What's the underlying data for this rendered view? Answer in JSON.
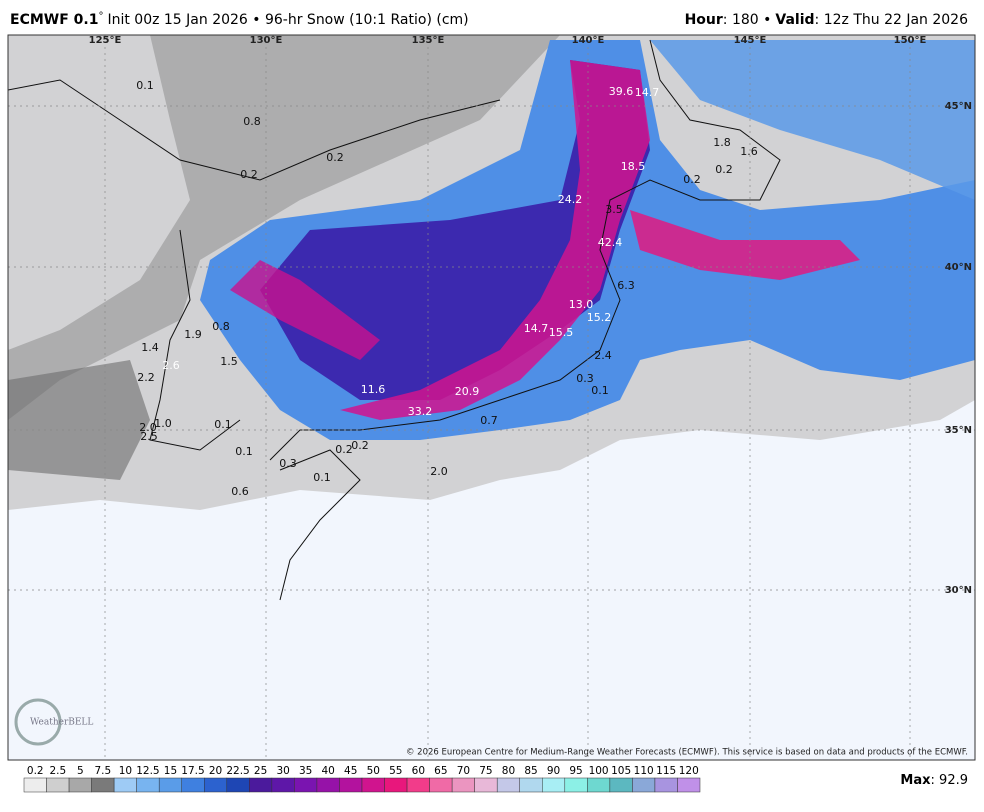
{
  "header": {
    "model": "ECMWF 0.1",
    "degree": "°",
    "description": "Init 00z 15 Jan 2026 • 96-hr Snow (10:1 Ratio) (cm)",
    "hour_label": "Hour",
    "hour_text": ": 180 •",
    "valid_label": "Valid",
    "valid_text": ": 12z Thu 22 Jan 2026"
  },
  "longitudes": [
    "125°E",
    "130°E",
    "135°E",
    "140°E",
    "145°E",
    "150°E"
  ],
  "latitudes": [
    "45°N",
    "40°N",
    "35°N",
    "30°N"
  ],
  "point_values": [
    "0.1",
    "0.8",
    "0.2",
    "0.2",
    "39.6",
    "14.7",
    "18.5",
    "1.8",
    "1.6",
    "0.2",
    "0.2",
    "24.2",
    "3.5",
    "42.4",
    "6.3",
    "13.0",
    "15.2",
    "14.7",
    "15.5",
    "1.9",
    "0.8",
    "1.4",
    "2.6",
    "1.5",
    "2.2",
    "2.4",
    "0.3",
    "0.1",
    "11.6",
    "20.9",
    "33.2",
    "0.7",
    "0.1",
    "1.0",
    "2.0",
    "2.5",
    "0.1",
    "0.2",
    "0.2",
    "0.3",
    "2.0",
    "0.1",
    "0.6"
  ],
  "colorbar": {
    "levels": [
      0.2,
      2.5,
      5,
      7.5,
      10,
      12.5,
      15,
      17.5,
      20,
      22.5,
      25,
      30,
      35,
      40,
      45,
      50,
      55,
      60,
      65,
      70,
      75,
      80,
      85,
      90,
      95,
      100,
      105,
      110,
      115,
      120
    ],
    "colors": [
      "#ededed",
      "#cfcfcf",
      "#a8a8a8",
      "#7a7a7a",
      "#9ecbf5",
      "#78b4f0",
      "#5a9ce8",
      "#3f80e0",
      "#2c62cf",
      "#1e46b4",
      "#4b1a9c",
      "#5e17a8",
      "#7a14b0",
      "#9612a8",
      "#b3129e",
      "#d0148e",
      "#e8177c",
      "#f23c8a",
      "#f06aa6",
      "#eb95c0",
      "#e8b8d8",
      "#c4c8e8",
      "#b0d8ee",
      "#a8eef4",
      "#8cf0e6",
      "#6ed8d0",
      "#5cb8c0",
      "#8aa8d8",
      "#a894e0",
      "#c090e8"
    ]
  },
  "max": {
    "label": "Max",
    "text": ": 92.9"
  },
  "copyright": "© 2026 European Centre for Medium-Range Weather Forecasts (ECMWF). This service is based on data and products of the ECMWF.",
  "logo": "WeatherBELL"
}
